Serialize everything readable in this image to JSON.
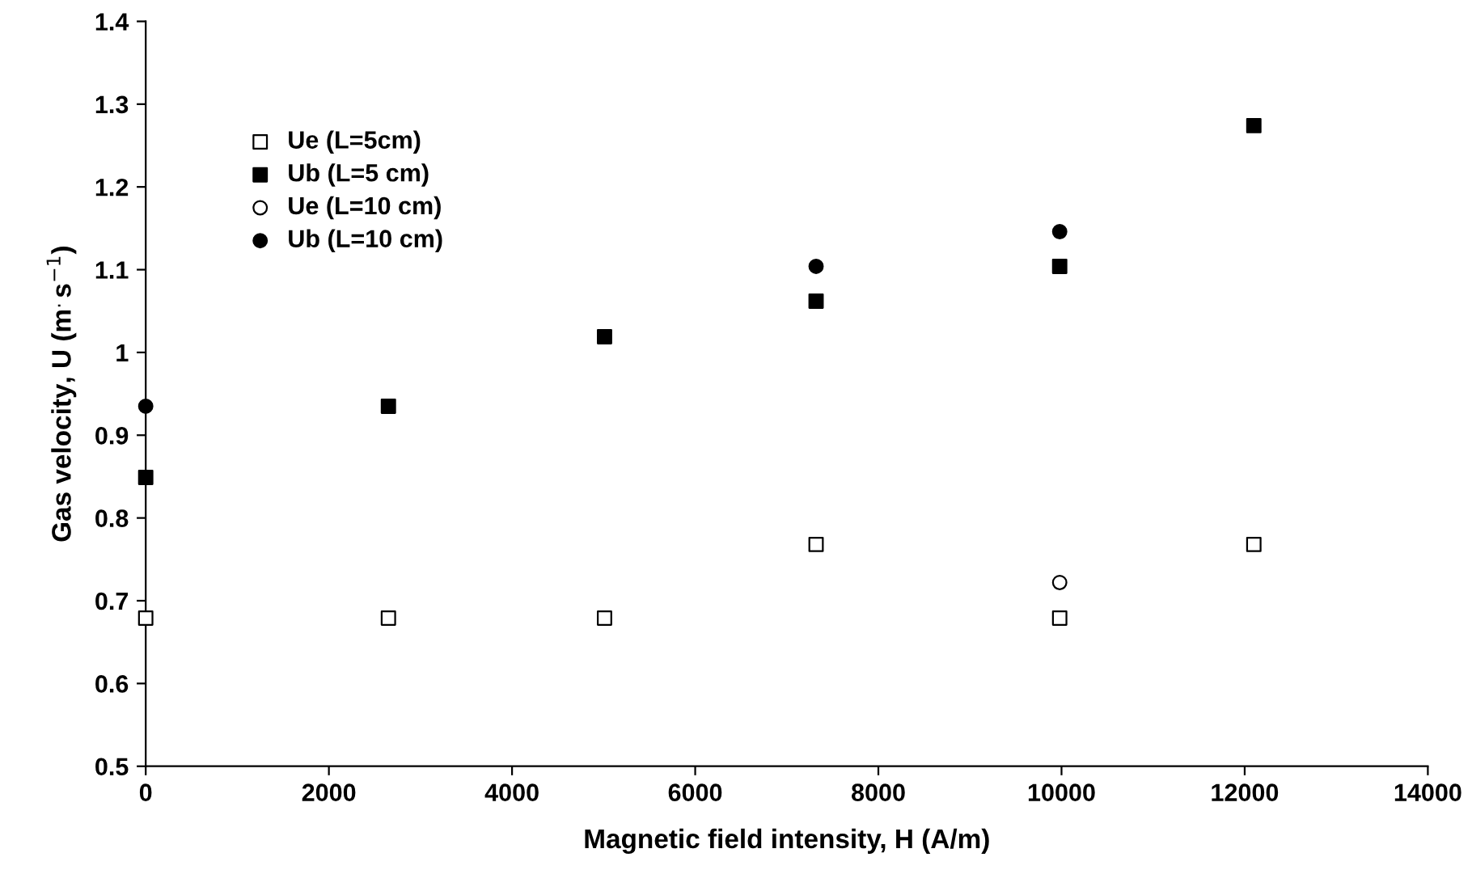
{
  "chart_data": {
    "type": "scatter",
    "xlabel": "Magnetic field intensity, H (A/m)",
    "ylabel": "Gas velocity, U (m$^{.}$s$^{−1}$)",
    "xlim": [
      0,
      14000
    ],
    "xticks": [
      0,
      2000,
      4000,
      6000,
      8000,
      10000,
      12000,
      14000
    ],
    "ylim": [
      0.5,
      1.4
    ],
    "yticks": [
      0.5,
      0.6,
      0.7,
      0.8,
      0.9,
      1,
      1.1,
      1.2,
      1.3,
      1.4
    ],
    "grid": false,
    "legend": "top left",
    "series": [
      {
        "name": "Ue (L=5cm)",
        "color": "#ffffff",
        "marker": "square",
        "x": [
          0,
          2650,
          5010,
          7320,
          9980,
          12100
        ],
        "values": [
          0.679,
          0.679,
          0.679,
          0.768,
          0.679,
          0.768
        ]
      },
      {
        "name": "Ub (L=5 cm)",
        "color": "#000000",
        "marker": "square",
        "x": [
          0,
          2650,
          5010,
          7320,
          9980,
          12100
        ],
        "values": [
          0.849,
          0.935,
          1.019,
          1.062,
          1.104,
          1.274
        ]
      },
      {
        "name": "Ue (L=10 cm)",
        "color": "#ffffff",
        "marker": "circle",
        "x": [
          9980
        ],
        "values": [
          0.722
        ]
      },
      {
        "name": "Ub (L=10 cm)",
        "color": "#000000",
        "marker": "circle",
        "x": [
          0,
          7320,
          9980
        ],
        "values": [
          0.935,
          1.104,
          1.146
        ]
      }
    ]
  }
}
